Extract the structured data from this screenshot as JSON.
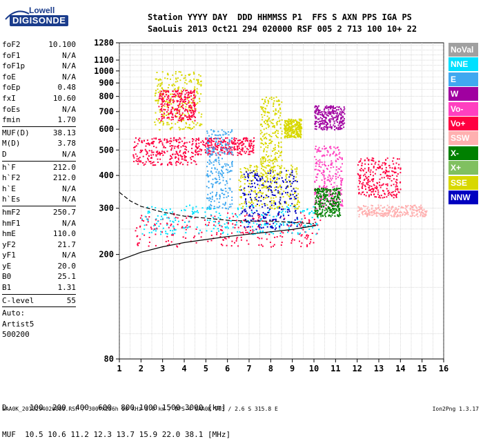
{
  "logo": {
    "top": "Lowell",
    "bottom": "DIGISONDE"
  },
  "header": {
    "row1": "Station YYYY DAY  DDD HHMMSS P1  FFS S AXN PPS IGA PS",
    "row2": "SaoLuis 2013 Oct21 294 020000 RSF 005 2 713 100 10+ 22"
  },
  "params": {
    "g1": [
      [
        "foF2",
        "10.100"
      ],
      [
        "foF1",
        "N/A"
      ],
      [
        "foF1p",
        "N/A"
      ],
      [
        "foE",
        "N/A"
      ],
      [
        "foEp",
        "0.48"
      ],
      [
        "fxI",
        "10.60"
      ],
      [
        "foEs",
        "N/A"
      ],
      [
        "fmin",
        "1.70"
      ]
    ],
    "g2": [
      [
        "MUF(D)",
        "38.13"
      ],
      [
        "M(D)",
        "3.78"
      ],
      [
        "D",
        "N/A"
      ]
    ],
    "g3": [
      [
        "h`F",
        "212.0"
      ],
      [
        "h`F2",
        "212.0"
      ],
      [
        "h`E",
        "N/A"
      ],
      [
        "h`Es",
        "N/A"
      ]
    ],
    "g4": [
      [
        "hmF2",
        "250.7"
      ],
      [
        "hmF1",
        "N/A"
      ],
      [
        "hmE",
        "110.0"
      ],
      [
        "yF2",
        "21.7"
      ],
      [
        "yF1",
        "N/A"
      ],
      [
        "yE",
        "20.0"
      ],
      [
        "B0",
        "25.1"
      ],
      [
        "B1",
        "1.31"
      ]
    ],
    "g5": [
      [
        "C-level",
        "55"
      ]
    ],
    "auto": [
      "Auto:",
      "Artist5",
      "500200"
    ]
  },
  "legend": [
    {
      "label": "NoVal",
      "color": "#a0a0a0"
    },
    {
      "label": "NNE",
      "color": "#00e0ff"
    },
    {
      "label": "E",
      "color": "#40a8f0"
    },
    {
      "label": "W",
      "color": "#a000a0"
    },
    {
      "label": "Vo-",
      "color": "#ff40c0"
    },
    {
      "label": "Vo+",
      "color": "#ff0040"
    },
    {
      "label": "SSW",
      "color": "#ffb0b0"
    },
    {
      "label": "X-",
      "color": "#008000"
    },
    {
      "label": "X+",
      "color": "#80c060"
    },
    {
      "label": "SSE",
      "color": "#d8d800"
    },
    {
      "label": "NNW",
      "color": "#0000c0"
    }
  ],
  "footer": {
    "row1": "D     100  200  400  600  800 1000 1500 3000 [km]",
    "row2": "MUF  10.5 10.6 11.2 12.3 13.7 15.9 22.0 38.1 [MHz]",
    "file": "SAA0K_2013294020000.RSF / 300fx256h 50 kHz 5.0 km / DPS-4 SAA0K 903 / 2.6 S 315.8 E",
    "version": "Ion2Png 1.3.17"
  },
  "chart_data": {
    "type": "scatter",
    "title": "",
    "xlabel": "",
    "ylabel": "",
    "x_ticks": [
      1,
      2,
      3,
      4,
      5,
      6,
      7,
      8,
      9,
      10,
      11,
      12,
      13,
      14,
      15,
      16
    ],
    "y_ticks": [
      80,
      200,
      300,
      400,
      500,
      600,
      700,
      800,
      900,
      1000,
      1100,
      1280
    ],
    "xlim": [
      1,
      16
    ],
    "ylim": [
      80,
      1280
    ],
    "y_scale": "log",
    "grid": true,
    "traces": [
      {
        "name": "profile_lower",
        "color": "#000000",
        "points": [
          [
            1.0,
            190
          ],
          [
            2,
            204
          ],
          [
            3,
            214
          ],
          [
            4,
            222
          ],
          [
            5,
            228
          ],
          [
            6,
            234
          ],
          [
            7,
            239
          ],
          [
            8,
            244
          ],
          [
            9,
            249
          ],
          [
            10.1,
            258
          ]
        ]
      },
      {
        "name": "profile_upper",
        "color": "#000000",
        "points": [
          [
            1.0,
            345
          ],
          [
            1.5,
            320
          ],
          [
            2,
            305
          ],
          [
            3,
            290
          ],
          [
            4,
            280
          ],
          [
            5,
            275
          ],
          [
            6,
            270
          ],
          [
            7,
            268
          ],
          [
            8,
            268
          ],
          [
            9,
            265
          ],
          [
            10,
            262
          ]
        ]
      }
    ],
    "clusters": [
      {
        "x": [
          1.6,
          4.6
        ],
        "y": [
          440,
          560
        ],
        "color": "#ff0040"
      },
      {
        "x": [
          1.7,
          10.3
        ],
        "y": [
          215,
          290
        ],
        "color": "#ff0040"
      },
      {
        "x": [
          2.0,
          10.2
        ],
        "y": [
          240,
          310
        ],
        "color": "#00e0ff"
      },
      {
        "x": [
          2.6,
          4.8
        ],
        "y": [
          600,
          1000
        ],
        "color": "#d8d800"
      },
      {
        "x": [
          2.8,
          4.5
        ],
        "y": [
          650,
          850
        ],
        "color": "#ff0040"
      },
      {
        "x": [
          6.5,
          9.3
        ],
        "y": [
          300,
          440
        ],
        "color": "#d8d800"
      },
      {
        "x": [
          6.6,
          9.2
        ],
        "y": [
          250,
          420
        ],
        "color": "#0000c0"
      },
      {
        "x": [
          7.5,
          8.5
        ],
        "y": [
          400,
          800
        ],
        "color": "#d8d800"
      },
      {
        "x": [
          8.6,
          9.4
        ],
        "y": [
          560,
          660
        ],
        "color": "#d8d800"
      },
      {
        "x": [
          10.0,
          11.4
        ],
        "y": [
          600,
          740
        ],
        "color": "#a000a0"
      },
      {
        "x": [
          10.0,
          11.3
        ],
        "y": [
          300,
          520
        ],
        "color": "#ff40c0"
      },
      {
        "x": [
          10.0,
          11.2
        ],
        "y": [
          280,
          360
        ],
        "color": "#008000"
      },
      {
        "x": [
          12.0,
          14.0
        ],
        "y": [
          330,
          470
        ],
        "color": "#ff0040"
      },
      {
        "x": [
          12.0,
          15.2
        ],
        "y": [
          280,
          310
        ],
        "color": "#ffb0b0"
      },
      {
        "x": [
          4.5,
          7.2
        ],
        "y": [
          480,
          560
        ],
        "color": "#ff0040"
      },
      {
        "x": [
          5.0,
          6.2
        ],
        "y": [
          300,
          600
        ],
        "color": "#40a8f0"
      }
    ]
  }
}
